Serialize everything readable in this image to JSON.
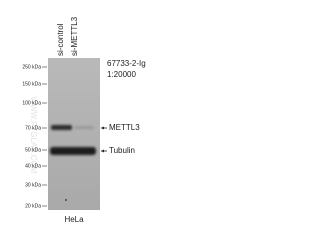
{
  "lanes": [
    "si-control",
    "si-METTL3"
  ],
  "antibody": "67733-2-Ig",
  "dilution": "1:20000",
  "markers": [
    "250 kDa",
    "150 kDa",
    "100 kDa",
    "70 kDa",
    "50 kDa",
    "40 kDa",
    "30 kDa",
    "20 kDa"
  ],
  "bands": [
    "METTL3",
    "Tubulin"
  ],
  "cell_line": "HeLa",
  "watermark": "WWW.PTGLAB.COM"
}
